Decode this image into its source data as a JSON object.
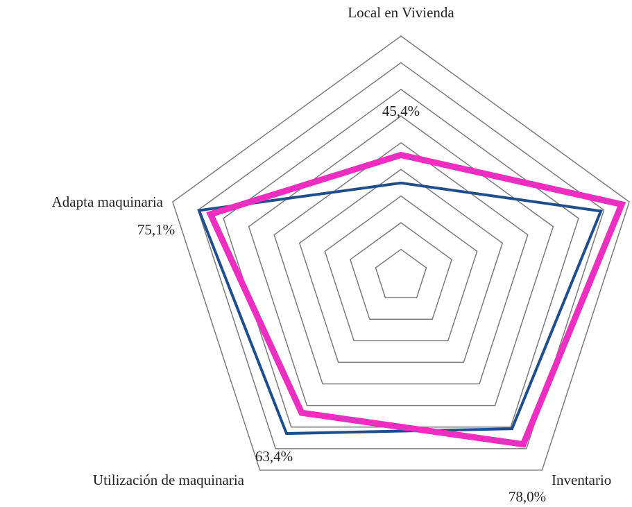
{
  "chart_data": {
    "type": "radar",
    "categories": [
      "Local en Vivienda",
      null,
      "Inventario",
      "Utilización de maquinaria",
      "Adapta maquinaria"
    ],
    "series": [
      {
        "color": "#1f4e8c",
        "values": [
          34.9,
          78.8,
          70.8,
          73.0,
          79.6
        ]
      },
      {
        "color": "#ee2ec0",
        "values": [
          45.4,
          87.0,
          78.0,
          63.4,
          75.1
        ],
        "value_labels": [
          "45,4%",
          null,
          "78,0%",
          "63,4%",
          "75,1%"
        ]
      }
    ],
    "ylim": [
      0,
      90
    ],
    "yticks": [
      10,
      20,
      30,
      40,
      50,
      60,
      70,
      80,
      90
    ],
    "grid": true
  }
}
